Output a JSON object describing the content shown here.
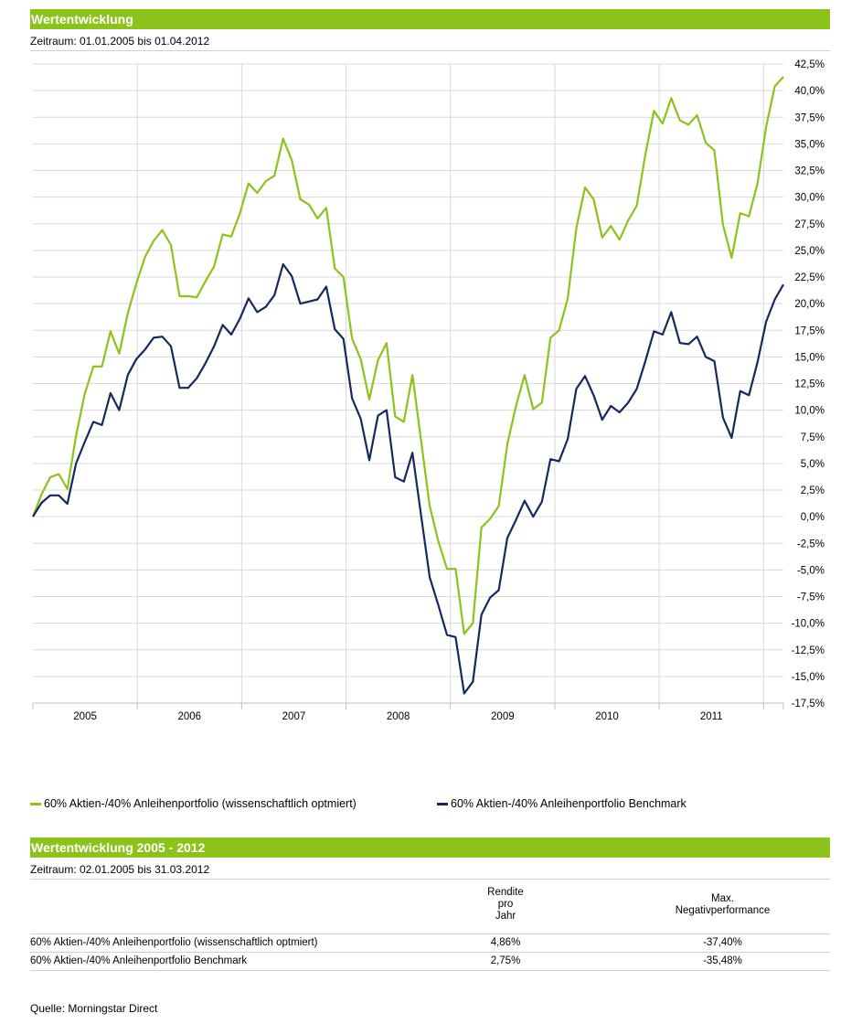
{
  "section1": {
    "title": "Wertentwicklung",
    "period": "Zeitraum: 01.01.2005 bis 01.04.2012"
  },
  "legend": [
    {
      "label": "60% Aktien-/40% Anleihenportfolio (wissenschaftlich optmiert)",
      "color": "#8cc31a"
    },
    {
      "label": "60% Aktien-/40% Anleihenportfolio Benchmark",
      "color": "#16295e"
    }
  ],
  "chart_data": {
    "type": "line",
    "title": "",
    "xlabel": "",
    "ylabel": "",
    "ylim": [
      -17.5,
      42.5
    ],
    "y_ticks": [
      "42,5%",
      "40,0%",
      "37,5%",
      "35,0%",
      "32,5%",
      "30,0%",
      "27,5%",
      "25,0%",
      "22,5%",
      "20,0%",
      "17,5%",
      "15,0%",
      "12,5%",
      "10,0%",
      "7,5%",
      "5,0%",
      "2,5%",
      "0,0%",
      "-2,5%",
      "-5,0%",
      "-7,5%",
      "-10,0%",
      "-12,5%",
      "-15,0%",
      "-17,5%"
    ],
    "x_ticks": [
      "2005",
      "2006",
      "2007",
      "2008",
      "2009",
      "2010",
      "2011"
    ],
    "grid": true,
    "series": [
      {
        "name": "60% Aktien-/40% Anleihenportfolio (wissenschaftlich optmiert)",
        "color": "#8cc31a",
        "values": [
          0,
          2.1,
          3.7,
          4.0,
          2.6,
          7.6,
          11.5,
          14.1,
          14.1,
          17.4,
          15.3,
          19.1,
          21.9,
          24.4,
          25.9,
          26.9,
          25.5,
          20.7,
          20.7,
          20.6,
          22.1,
          23.5,
          26.5,
          26.3,
          28.5,
          31.3,
          30.4,
          31.5,
          32.0,
          35.5,
          33.5,
          29.8,
          29.3,
          28.0,
          29.0,
          23.3,
          22.5,
          16.7,
          14.8,
          11.0,
          14.7,
          16.3,
          9.4,
          8.9,
          13.3,
          7.1,
          1.0,
          -2.3,
          -4.9,
          -4.9,
          -11.0,
          -10.0,
          -1.0,
          -0.2,
          1.0,
          6.8,
          10.4,
          13.3,
          10.1,
          10.7,
          16.8,
          17.5,
          20.5,
          27.1,
          30.9,
          29.8,
          26.2,
          27.3,
          26.0,
          27.8,
          29.2,
          34.0,
          38.1,
          36.9,
          39.3,
          37.2,
          36.8,
          37.7,
          35.1,
          34.4,
          27.4,
          24.3,
          28.5,
          28.2,
          31.3,
          36.6,
          40.4,
          41.3
        ]
      },
      {
        "name": "60% Aktien-/40% Anleihenportfolio Benchmark",
        "color": "#16295e",
        "values": [
          0,
          1.3,
          2.0,
          2.0,
          1.2,
          5.0,
          7.0,
          8.9,
          8.6,
          11.6,
          10.0,
          13.3,
          14.8,
          15.7,
          16.8,
          16.9,
          16.0,
          12.1,
          12.1,
          13.0,
          14.4,
          16.0,
          18.0,
          17.1,
          18.6,
          20.5,
          19.2,
          19.7,
          20.8,
          23.7,
          22.6,
          20.0,
          20.2,
          20.4,
          21.6,
          17.6,
          16.7,
          11.1,
          9.2,
          5.3,
          9.5,
          10.0,
          3.7,
          3.3,
          6.0,
          0.1,
          -5.7,
          -8.3,
          -11.1,
          -11.3,
          -16.6,
          -15.5,
          -9.2,
          -7.6,
          -6.9,
          -2.0,
          -0.3,
          1.5,
          0.0,
          1.4,
          5.4,
          5.2,
          7.3,
          12.0,
          13.2,
          11.4,
          9.1,
          10.4,
          9.8,
          10.7,
          12.0,
          14.6,
          17.4,
          17.1,
          19.2,
          16.3,
          16.2,
          16.9,
          15.0,
          14.6,
          9.3,
          7.4,
          11.8,
          11.4,
          14.5,
          18.3,
          20.4,
          21.8
        ]
      }
    ]
  },
  "section2": {
    "title": "Wertentwicklung 2005 - 2012",
    "period": "Zeitraum: 02.01.2005 bis 31.03.2012",
    "table": {
      "columns": [
        "",
        "Rendite\npro\nJahr",
        "Max.\nNegativperformance"
      ],
      "rows": [
        [
          "60% Aktien-/40% Anleihenportfolio (wissenschaftlich optmiert)",
          "4,86%",
          "-37,40%"
        ],
        [
          "60% Aktien-/40% Anleihenportfolio Benchmark",
          "2,75%",
          "-35,48%"
        ]
      ]
    }
  },
  "source": "Quelle: Morningstar Direct"
}
